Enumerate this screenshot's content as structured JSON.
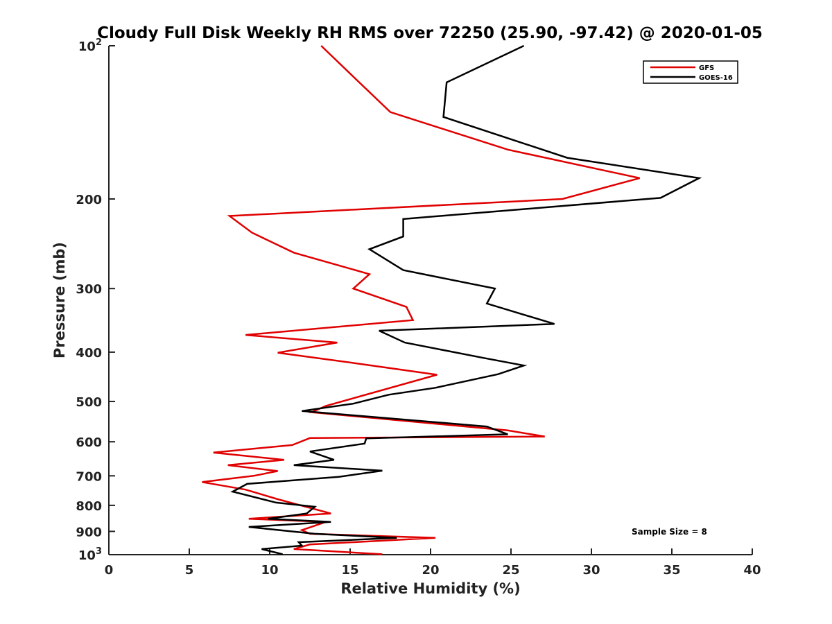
{
  "chart_data": {
    "type": "line",
    "title": "Cloudy Full Disk Weekly RH RMS over 72250 (25.90, -97.42) @ 2020-01-05",
    "xlabel": "Relative Humidity (%)",
    "ylabel": "Pressure (mb)",
    "xlim": [
      0,
      40
    ],
    "ylim": [
      100,
      1000
    ],
    "y_scale": "log",
    "y_reversed": true,
    "grid": false,
    "legend_position": "top-right",
    "x_ticks": [
      0,
      5,
      10,
      15,
      20,
      25,
      30,
      35,
      40
    ],
    "y_ticks": [
      {
        "value": 100,
        "base": "10",
        "exp": "2"
      },
      {
        "value": 200,
        "label": "200"
      },
      {
        "value": 300,
        "label": "300"
      },
      {
        "value": 400,
        "label": "400"
      },
      {
        "value": 500,
        "label": "500"
      },
      {
        "value": 600,
        "label": "600"
      },
      {
        "value": 700,
        "label": "700"
      },
      {
        "value": 800,
        "label": "800"
      },
      {
        "value": 900,
        "label": "900"
      },
      {
        "value": 1000,
        "base": "10",
        "exp": "3"
      }
    ],
    "annotation": "Sample Size = 8",
    "series": [
      {
        "name": "GFS",
        "color": "#e00000",
        "points": [
          [
            13.2,
            100
          ],
          [
            15.2,
            115
          ],
          [
            17.5,
            135
          ],
          [
            24.8,
            160
          ],
          [
            33.0,
            182
          ],
          [
            28.2,
            200
          ],
          [
            7.5,
            216
          ],
          [
            8.9,
            233
          ],
          [
            11.5,
            255
          ],
          [
            16.2,
            281
          ],
          [
            15.2,
            300
          ],
          [
            18.5,
            326
          ],
          [
            18.9,
            346
          ],
          [
            8.5,
            370
          ],
          [
            14.2,
            383
          ],
          [
            10.5,
            401
          ],
          [
            15.2,
            420
          ],
          [
            20.4,
            443
          ],
          [
            13.5,
            510
          ],
          [
            12.6,
            525
          ],
          [
            24.8,
            570
          ],
          [
            27.1,
            586
          ],
          [
            12.5,
            590
          ],
          [
            11.4,
            609
          ],
          [
            6.5,
            630
          ],
          [
            10.9,
            651
          ],
          [
            7.4,
            667
          ],
          [
            10.5,
            685
          ],
          [
            9.0,
            700
          ],
          [
            5.8,
            720
          ],
          [
            8.5,
            745
          ],
          [
            10.5,
            778
          ],
          [
            13.8,
            830
          ],
          [
            8.7,
            850
          ],
          [
            13.5,
            862
          ],
          [
            12.0,
            895
          ],
          [
            12.5,
            910
          ],
          [
            20.3,
            927
          ],
          [
            12.5,
            955
          ],
          [
            11.5,
            975
          ],
          [
            17.0,
            998
          ]
        ]
      },
      {
        "name": "GOES-16",
        "color": "#000000",
        "points": [
          [
            25.8,
            100
          ],
          [
            21.0,
            118
          ],
          [
            20.8,
            138
          ],
          [
            28.5,
            166
          ],
          [
            36.7,
            182
          ],
          [
            34.3,
            199
          ],
          [
            18.3,
            219
          ],
          [
            18.3,
            237
          ],
          [
            16.2,
            251
          ],
          [
            18.3,
            276
          ],
          [
            24.0,
            300
          ],
          [
            23.5,
            321
          ],
          [
            27.7,
            352
          ],
          [
            16.8,
            363
          ],
          [
            18.4,
            383
          ],
          [
            23.2,
            410
          ],
          [
            25.8,
            425
          ],
          [
            24.2,
            442
          ],
          [
            20.3,
            470
          ],
          [
            17.4,
            485
          ],
          [
            15.2,
            505
          ],
          [
            12.0,
            522
          ],
          [
            23.5,
            560
          ],
          [
            24.8,
            580
          ],
          [
            16.0,
            591
          ],
          [
            15.9,
            605
          ],
          [
            12.5,
            627
          ],
          [
            14.0,
            651
          ],
          [
            11.5,
            667
          ],
          [
            17.0,
            684
          ],
          [
            14.3,
            703
          ],
          [
            8.6,
            726
          ],
          [
            7.7,
            752
          ],
          [
            10.4,
            790
          ],
          [
            12.8,
            805
          ],
          [
            12.3,
            830
          ],
          [
            9.9,
            850
          ],
          [
            13.8,
            862
          ],
          [
            8.7,
            882
          ],
          [
            12.8,
            910
          ],
          [
            17.9,
            927
          ],
          [
            11.8,
            945
          ],
          [
            12.0,
            960
          ],
          [
            9.5,
            975
          ],
          [
            10.8,
            998
          ]
        ]
      }
    ]
  }
}
